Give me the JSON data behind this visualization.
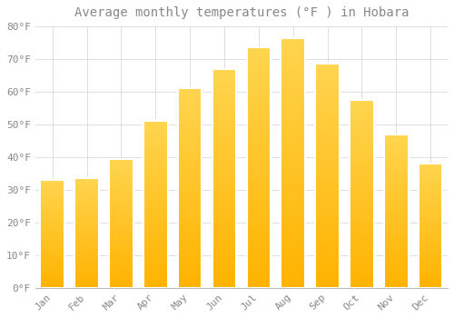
{
  "title": "Average monthly temperatures (°F ) in Hobara",
  "months": [
    "Jan",
    "Feb",
    "Mar",
    "Apr",
    "May",
    "Jun",
    "Jul",
    "Aug",
    "Sep",
    "Oct",
    "Nov",
    "Dec"
  ],
  "values": [
    33,
    33.5,
    39.5,
    51,
    61,
    67,
    73.5,
    76.5,
    68.5,
    57.5,
    47,
    38
  ],
  "bar_color_top": "#FFD54F",
  "bar_color_bottom": "#FFB300",
  "background_color": "#FFFFFF",
  "grid_color": "#DDDDDD",
  "ylim": [
    0,
    80
  ],
  "yticks": [
    0,
    10,
    20,
    30,
    40,
    50,
    60,
    70,
    80
  ],
  "ytick_labels": [
    "0°F",
    "10°F",
    "20°F",
    "30°F",
    "40°F",
    "50°F",
    "60°F",
    "70°F",
    "80°F"
  ],
  "title_fontsize": 10,
  "tick_fontsize": 8,
  "font_color": "#888888",
  "bar_width": 0.7
}
